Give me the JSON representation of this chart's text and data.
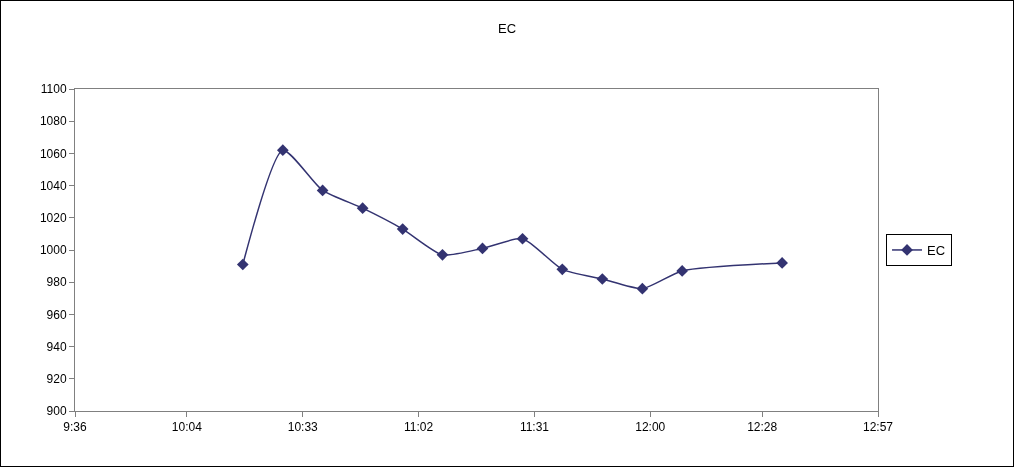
{
  "chart_data": {
    "type": "line",
    "title": "EC",
    "x": [
      10.3,
      10.467,
      10.633,
      10.8,
      10.967,
      11.133,
      11.3,
      11.467,
      11.633,
      11.8,
      11.967,
      12.133,
      12.55
    ],
    "series": [
      {
        "name": "EC",
        "color": "#333371",
        "values": [
          991,
          1062,
          1037,
          1026,
          1013,
          997,
          1001,
          1007,
          988,
          982,
          976,
          987,
          992
        ]
      }
    ],
    "xlim": [
      9.6,
      12.95
    ],
    "xticks": [
      {
        "value": 9.6,
        "label": "9:36"
      },
      {
        "value": 10.0667,
        "label": "10:04"
      },
      {
        "value": 10.55,
        "label": "10:33"
      },
      {
        "value": 11.0333,
        "label": "11:02"
      },
      {
        "value": 11.5167,
        "label": "11:31"
      },
      {
        "value": 12,
        "label": "12:00"
      },
      {
        "value": 12.4667,
        "label": "12:28"
      },
      {
        "value": 12.95,
        "label": "12:57"
      }
    ],
    "ylim": [
      900,
      1100
    ],
    "yticks": [
      900,
      920,
      940,
      960,
      980,
      1000,
      1020,
      1040,
      1060,
      1080,
      1100
    ],
    "grid": false,
    "legend": "right",
    "marker": "diamond",
    "line_style": "solid"
  }
}
